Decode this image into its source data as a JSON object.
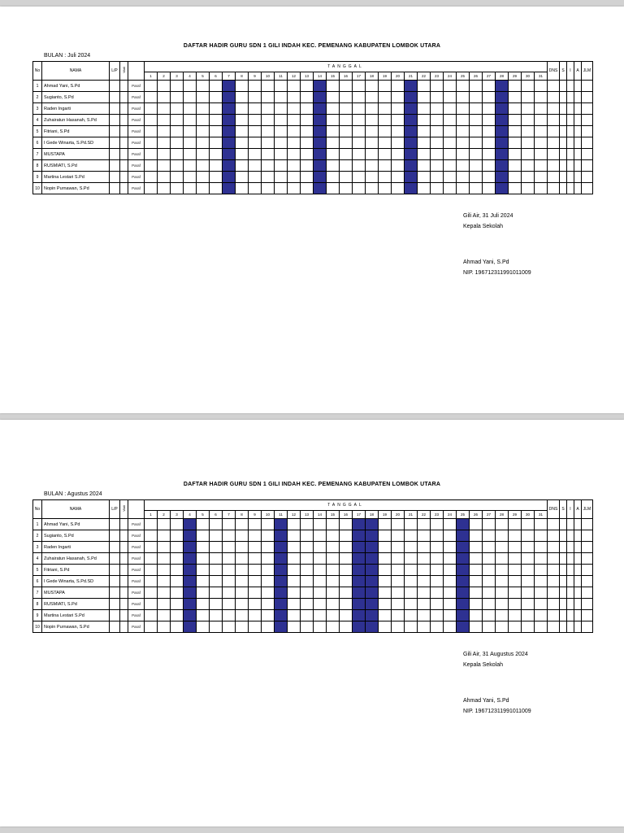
{
  "viewer_bg": "#d2d2d2",
  "highlight_color": "#2e3192",
  "dates": [
    "1",
    "2",
    "3",
    "4",
    "5",
    "6",
    "7",
    "8",
    "9",
    "10",
    "11",
    "12",
    "13",
    "14",
    "15",
    "16",
    "17",
    "18",
    "19",
    "20",
    "21",
    "22",
    "23",
    "24",
    "25",
    "26",
    "27",
    "28",
    "29",
    "30",
    "31"
  ],
  "header": {
    "no": "No",
    "nama": "NAMA",
    "lp": "L/P",
    "wali": "Wali",
    "paraf_col": "",
    "tanggal": "TANGGAL",
    "dns": "DNS",
    "s": "S",
    "i": "I",
    "a": "A",
    "jlm": "JLM"
  },
  "paraf_label": "Paraf",
  "teachers": [
    "Ahmad Yani, S.Pd",
    "Sugianto, S.Pd",
    "Raden Ingarti",
    "Zuhairatun Hasanah, S.Pd",
    "Fitriani, S.Pd",
    "I Gede Winarta, S.Pd.SD",
    "MUSTAPA",
    "RUSMIATI, S.Pd",
    "Martina Lestari S.Pd",
    "Nopin Purnawan, S.Pd"
  ],
  "pages": [
    {
      "title": "DAFTAR HADIR GURU SDN 1 GILI INDAH KEC. PEMENANG KABUPATEN LOMBOK UTARA",
      "month_label": "BULAN : Juli 2024",
      "highlighted_dates": [
        7,
        14,
        21,
        28
      ],
      "signature": {
        "place_date": "Gili Air, 31 Juli 2024",
        "role": "Kepala Sekolah",
        "name": "Ahmad Yani, S.Pd",
        "nip": "NIP. 196712311991011009"
      }
    },
    {
      "title": "DAFTAR HADIR GURU SDN 1 GILI INDAH KEC. PEMENANG KABUPATEN LOMBOK UTARA",
      "month_label": "BULAN : Agustus 2024",
      "highlighted_dates": [
        4,
        11,
        17,
        18,
        25
      ],
      "signature": {
        "place_date": "Gili Air, 31 Augustus 2024",
        "role": "Kepala Sekolah",
        "name": "Ahmad Yani, S.Pd",
        "nip": "NIP. 196712311991011009"
      }
    }
  ]
}
